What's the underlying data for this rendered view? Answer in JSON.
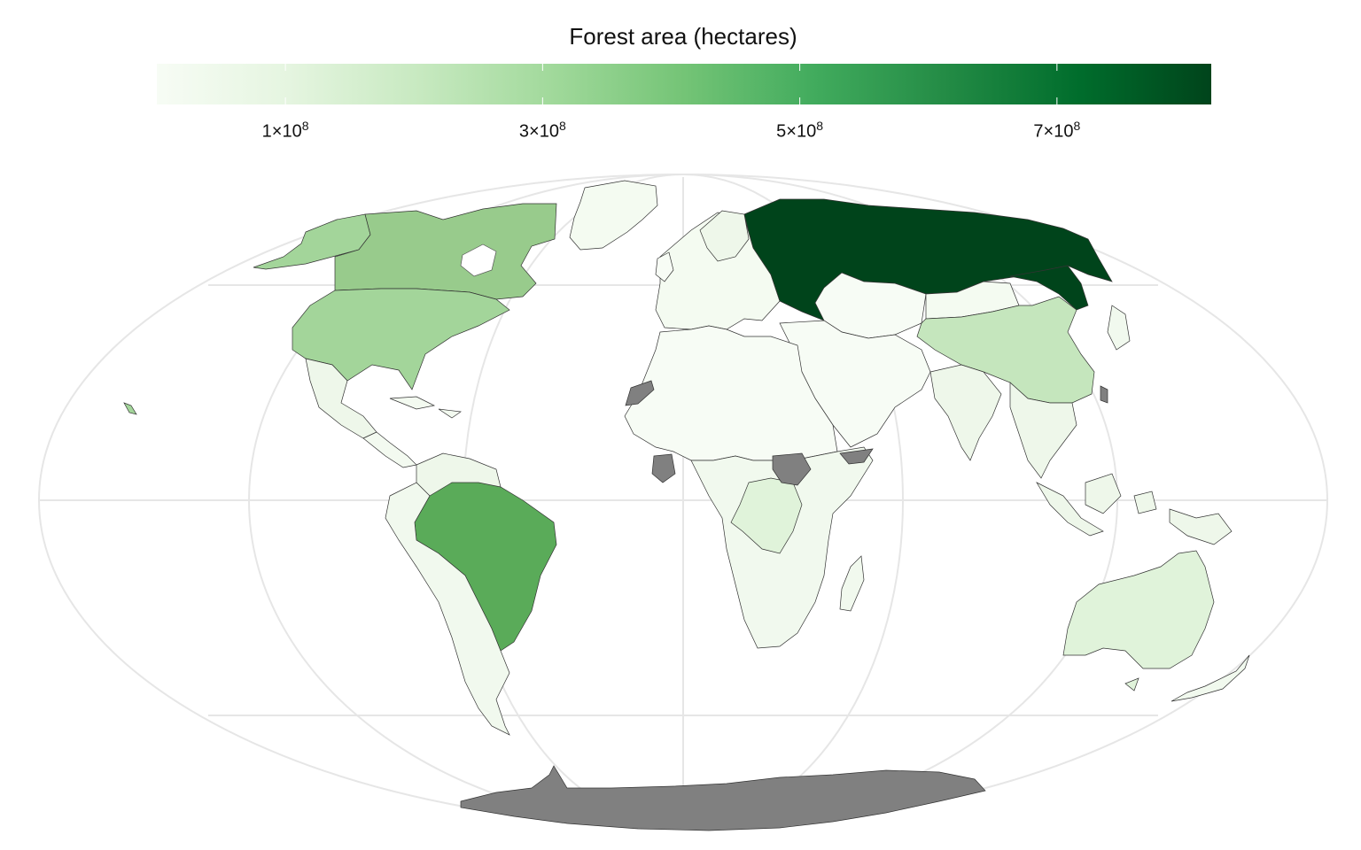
{
  "legend": {
    "title": "Forest area (hectares)",
    "scale": "sequential green",
    "colors": [
      "#f7fcf5",
      "#e5f5e0",
      "#c7e9c0",
      "#a1d99b",
      "#74c476",
      "#41ab5d",
      "#238b45",
      "#006d2c",
      "#00441b"
    ],
    "min": 0,
    "max": 820000000,
    "ticks": [
      {
        "value": 100000000,
        "mantissa": "1×10",
        "exp": "8"
      },
      {
        "value": 300000000,
        "mantissa": "3×10",
        "exp": "8"
      },
      {
        "value": 500000000,
        "mantissa": "5×10",
        "exp": "8"
      },
      {
        "value": 700000000,
        "mantissa": "7×10",
        "exp": "8"
      }
    ],
    "missing_color": "#808080"
  },
  "map": {
    "projection": "Mollweide-like world map with graticule",
    "regions": [
      {
        "name": "Russia",
        "color": "#00441b"
      },
      {
        "name": "Brazil",
        "color": "#5aab59"
      },
      {
        "name": "Canada",
        "color": "#98cb8c"
      },
      {
        "name": "United States",
        "color": "#a3d59a"
      },
      {
        "name": "China",
        "color": "#c5e6bd"
      },
      {
        "name": "DR Congo",
        "color": "#e0f3da"
      },
      {
        "name": "Australia",
        "color": "#e0f3da"
      },
      {
        "name": "Greenland",
        "color": "#f4fbf1"
      },
      {
        "name": "Antarctica",
        "color": "#808080"
      }
    ]
  }
}
